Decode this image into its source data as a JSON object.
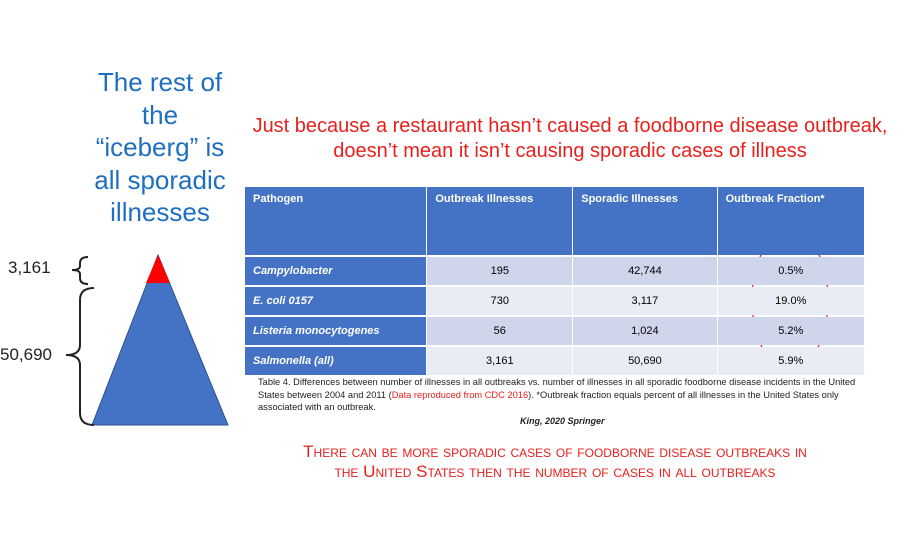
{
  "side_text": [
    "The rest of",
    "the",
    "“iceberg” is",
    "all sporadic",
    "illnesses"
  ],
  "headline": [
    "Just because a restaurant hasn’t caused a foodborne disease outbreak,",
    "doesn’t mean it isn’t causing sporadic cases of illness"
  ],
  "iceberg": {
    "tip_label": "3,161",
    "base_label": "50,690"
  },
  "table": {
    "header": [
      "Pathogen",
      "Outbreak Illnesses",
      "Sporadic Illnesses",
      "Outbreak Fraction*"
    ],
    "rows": [
      [
        "Campylobacter",
        "195",
        "42,744",
        "0.5%"
      ],
      [
        "E. coli 0157",
        "730",
        "3,117",
        "19.0%"
      ],
      [
        "Listeria monocytogenes",
        "56",
        "1,024",
        "5.2%"
      ],
      [
        "Salmonella (all)",
        "3,161",
        "50,690",
        "5.9%"
      ]
    ]
  },
  "caption": [
    "Table 4. Differences between number of illnesses in all outbreaks vs. number of illnesses in all sporadic foodborne disease incidents in the United States between 2004 and 2011 (",
    "Data reproduced from CDC 2016",
    "). *Outbreak fraction equals percent of all illnesses in the United States only associated with an outbreak."
  ],
  "citation": "King, 2020  Springer",
  "footer": [
    "There can be more sporadic cases of foodborne disease outbreaks in",
    "the United States then the number of cases in all outbreaks"
  ]
}
